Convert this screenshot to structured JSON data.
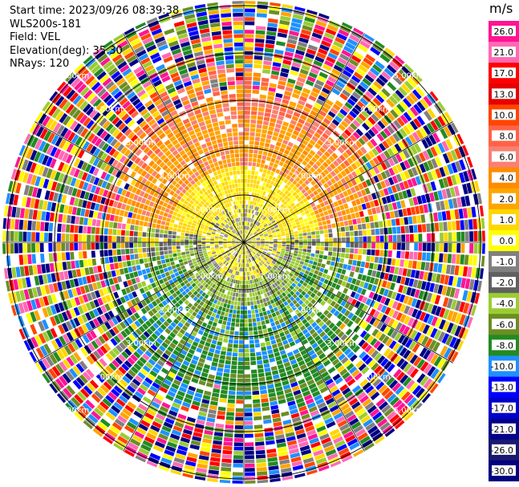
{
  "figure": {
    "header": {
      "start_time": "Start time: 2023/09/26 08:39:38",
      "instrument": "WLS200s-181",
      "field": "Field: VEL",
      "elevation": "Elevation(deg): 35.30",
      "nrays": "NRays: 120"
    }
  },
  "chart_data": {
    "type": "heatmap",
    "projection": "polar PPI",
    "field": "VEL",
    "units": "m/s",
    "elevation_deg": 35.3,
    "n_rays": 120,
    "range_rings_km": [
      1,
      2,
      3,
      4,
      5
    ],
    "ring_labels": [
      "1.00km",
      "2.00km",
      "3.00km",
      "4.00km",
      "5.00km"
    ],
    "max_range_km": 5.1,
    "radial_lines": 12,
    "colorbar": {
      "title": "m/s",
      "tick_labels": [
        "26.0",
        "21.0",
        "17.0",
        "13.0",
        "10.0",
        "8.0",
        "6.0",
        "4.0",
        "2.0",
        "1.0",
        "0.0",
        "-1.0",
        "-2.0",
        "-4.0",
        "-6.0",
        "-8.0",
        "-10.0",
        "-13.0",
        "-17.0",
        "-21.0",
        "-26.0",
        "-30.0"
      ],
      "colors": [
        "#ff1493",
        "#ff69b4",
        "#ff0000",
        "#e60000",
        "#ff4500",
        "#ff6347",
        "#fa8072",
        "#ff8c00",
        "#ffa500",
        "#ffd700",
        "#ffff00",
        "#808080",
        "#606060",
        "#9acd32",
        "#6b8e23",
        "#228b22",
        "#1e90ff",
        "#0000ff",
        "#0000cd",
        "#00008b",
        "#191970",
        "#000080"
      ]
    },
    "pattern": {
      "inner_sector": "near-zero to +2 m/s (grey/yellow) near radar",
      "north_sector_mid_range": "+6 to +10 m/s (orange/salmon)",
      "south_sector_mid_range": "-2 to -8 m/s (olive/green/blue)",
      "outer_ring": "noise, mixed colors"
    }
  }
}
